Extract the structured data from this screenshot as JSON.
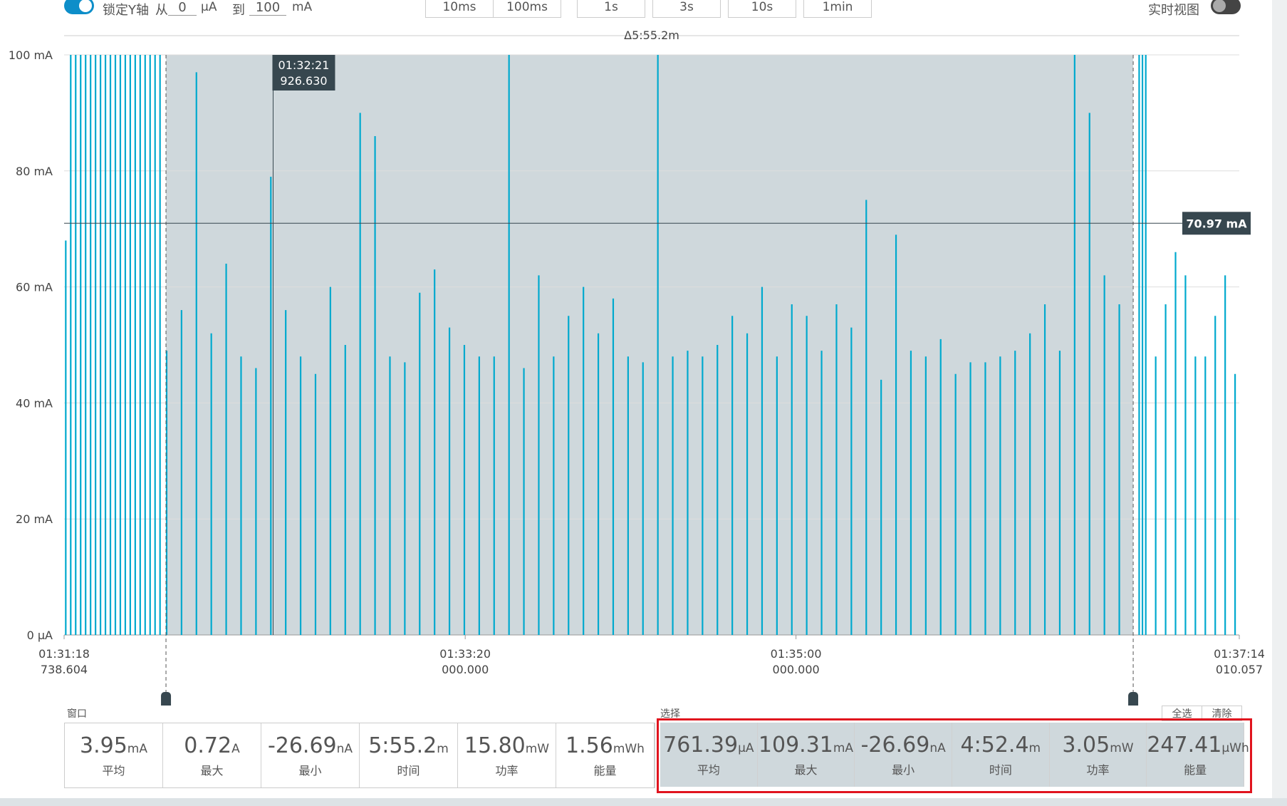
{
  "toolbar": {
    "lock_label": "锁定Y轴",
    "from_label": "从",
    "from_value": "0",
    "from_unit": "μA",
    "to_label": "到",
    "to_value": "100",
    "to_unit": "mA",
    "buttons": [
      "10ms",
      "100ms",
      "1s",
      "3s",
      "10s",
      "1min"
    ],
    "realtime_label": "实时视图"
  },
  "chart_data": {
    "type": "spikes",
    "color": "#00a9ce",
    "window_delta": "Δ5:55.2m",
    "selection_delta": "Δ4:52.4m",
    "xlim": [
      0,
      355.27
    ],
    "ylim": [
      0,
      100
    ],
    "yticks": [
      {
        "value": 0,
        "label": "0 μA"
      },
      {
        "value": 20,
        "label": "20 mA"
      },
      {
        "value": 40,
        "label": "40 mA"
      },
      {
        "value": 60,
        "label": "60 mA"
      },
      {
        "value": 80,
        "label": "80 mA"
      },
      {
        "value": 100,
        "label": "100 mA"
      }
    ],
    "xticks": [
      {
        "value": 0,
        "label": [
          "01:31:18",
          "738.604"
        ]
      },
      {
        "value": 121.26,
        "label": [
          "01:33:20",
          "000.000"
        ]
      },
      {
        "value": 221.26,
        "label": [
          "01:35:00",
          "000.000"
        ]
      },
      {
        "value": 355.27,
        "label": [
          "01:37:14",
          "010.057"
        ]
      }
    ],
    "selection": [
      30.8,
      323.2
    ],
    "cursor": {
      "x": 63.19,
      "label": [
        "01:32:21",
        "926.630"
      ]
    },
    "hline": {
      "value": 70.97,
      "label": "70.97 mA"
    },
    "x": [
      0.5,
      2,
      3.5,
      5,
      6.5,
      8,
      9.5,
      11,
      12.5,
      14,
      15.5,
      17,
      18.5,
      20,
      21.5,
      23,
      24.5,
      26,
      27.5,
      29,
      31,
      35.5,
      40,
      44.5,
      49,
      53.5,
      58,
      62.5,
      67,
      71.5,
      76,
      80.5,
      85,
      89.5,
      94,
      98.5,
      103,
      107.5,
      112,
      116.5,
      121,
      125.5,
      130,
      134.5,
      139,
      143.5,
      148,
      152.5,
      157,
      161.5,
      166,
      170.5,
      175,
      179.5,
      184,
      188.5,
      193,
      197.5,
      202,
      206.5,
      211,
      215.5,
      220,
      224.5,
      229,
      233.5,
      238,
      242.5,
      247,
      251.5,
      256,
      260.5,
      265,
      269.5,
      274,
      278.5,
      283,
      287.5,
      292,
      296.5,
      301,
      305.5,
      310,
      314.5,
      319,
      325,
      326,
      327,
      330,
      333,
      336,
      339,
      342,
      345,
      348,
      351,
      354
    ],
    "values": [
      68,
      100,
      100,
      100,
      100,
      100,
      100,
      100,
      100,
      100,
      100,
      100,
      100,
      100,
      100,
      100,
      100,
      100,
      100,
      100,
      49,
      56,
      97,
      52,
      64,
      48,
      46,
      79,
      56,
      48,
      45,
      60,
      50,
      90,
      86,
      48,
      47,
      59,
      63,
      53,
      50,
      48,
      48,
      100,
      46,
      62,
      48,
      55,
      60,
      52,
      58,
      48,
      47,
      100,
      48,
      49,
      48,
      50,
      55,
      52,
      60,
      48,
      57,
      55,
      49,
      57,
      53,
      75,
      44,
      69,
      49,
      48,
      51,
      45,
      47,
      47,
      48,
      49,
      52,
      57,
      49,
      100,
      90,
      62,
      57,
      100,
      100,
      100,
      48,
      57,
      66,
      62,
      48,
      48,
      55,
      62,
      45
    ]
  },
  "stats": {
    "window_label": "窗口",
    "selection_label": "选择",
    "select_all": "全选",
    "clear": "清除",
    "window": [
      {
        "value": "3.95",
        "unit": "mA",
        "label": "平均"
      },
      {
        "value": "0.72",
        "unit": "A",
        "label": "最大"
      },
      {
        "value": "-26.69",
        "unit": "nA",
        "label": "最小"
      },
      {
        "value": "5:55.2",
        "unit": "m",
        "label": "时间"
      },
      {
        "value": "15.80",
        "unit": "mW",
        "label": "功率"
      },
      {
        "value": "1.56",
        "unit": "mWh",
        "label": "能量"
      }
    ],
    "selection": [
      {
        "value": "761.39",
        "unit": "μA",
        "label": "平均"
      },
      {
        "value": "109.31",
        "unit": "mA",
        "label": "最大"
      },
      {
        "value": "-26.69",
        "unit": "nA",
        "label": "最小"
      },
      {
        "value": "4:52.4",
        "unit": "m",
        "label": "时间"
      },
      {
        "value": "3.05",
        "unit": "mW",
        "label": "功率"
      },
      {
        "value": "247.41",
        "unit": "μWh",
        "label": "能量"
      }
    ]
  }
}
